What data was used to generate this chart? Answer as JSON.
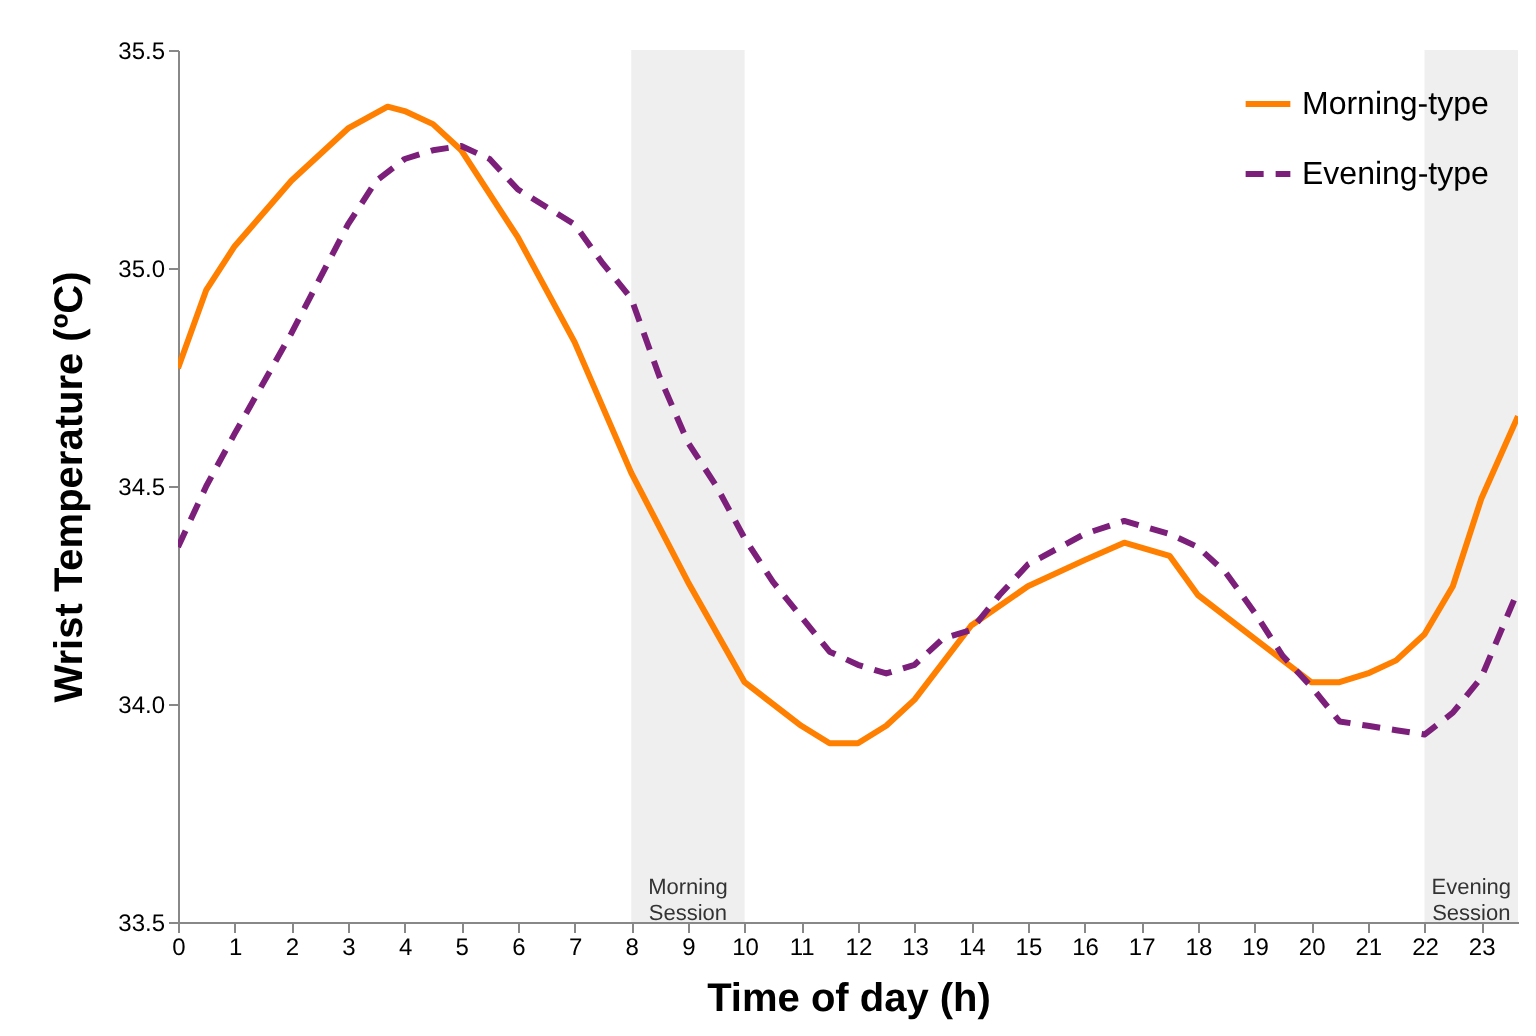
{
  "chart_data": {
    "type": "line",
    "xlabel": "Time of day (h)",
    "ylabel": "Wrist Temperature (ºC)",
    "xlim": [
      0,
      23.65
    ],
    "ylim": [
      33.5,
      35.5
    ],
    "xticks": [
      0,
      1,
      2,
      3,
      4,
      5,
      6,
      7,
      8,
      9,
      10,
      11,
      12,
      13,
      14,
      15,
      16,
      17,
      18,
      19,
      20,
      21,
      22,
      23
    ],
    "yticks": [
      33.5,
      {
        "value": 34,
        "label": "34.0"
      },
      34.5,
      {
        "value": 35,
        "label": "35.0"
      },
      35.5
    ],
    "grid": false,
    "legend": "top right",
    "marker": "none",
    "bands": [
      {
        "axis": "x",
        "from": 8,
        "to": 10,
        "label": "Morning Session",
        "color": "#efefef"
      },
      {
        "axis": "x",
        "from": 22,
        "to": 23.65,
        "label": "Evening Session",
        "color": "#efefef"
      }
    ],
    "series": [
      {
        "name": "Morning-type",
        "color": "#ff7f00",
        "line_style": "solid",
        "x": [
          0,
          0.5,
          1,
          2,
          3,
          3.7,
          4,
          4.5,
          5,
          6,
          7,
          8,
          9,
          10,
          11,
          11.5,
          12,
          12.5,
          13,
          14,
          15,
          16,
          16.7,
          17.5,
          18,
          19,
          20,
          20.5,
          21,
          21.5,
          22,
          22.5,
          23,
          23.65
        ],
        "values": [
          34.77,
          34.95,
          35.05,
          35.2,
          35.32,
          35.37,
          35.36,
          35.33,
          35.27,
          35.07,
          34.83,
          34.53,
          34.28,
          34.05,
          33.95,
          33.91,
          33.91,
          33.95,
          34.01,
          34.18,
          34.27,
          34.33,
          34.37,
          34.34,
          34.25,
          34.15,
          34.05,
          34.05,
          34.07,
          34.1,
          34.16,
          34.27,
          34.47,
          34.66
        ]
      },
      {
        "name": "Evening-type",
        "color": "#7b1f7b",
        "line_style": "dashed",
        "x": [
          0,
          0.5,
          1,
          2,
          3,
          3.5,
          4,
          4.5,
          5,
          5.5,
          6,
          7,
          7.5,
          8,
          8.5,
          9,
          9.5,
          10,
          10.5,
          11,
          11.5,
          12,
          12.5,
          13,
          13.5,
          14,
          14.5,
          15,
          16,
          16.7,
          17.5,
          18,
          18.5,
          19,
          19.5,
          20,
          20.5,
          21,
          21.5,
          22,
          22.5,
          23,
          23.65
        ],
        "values": [
          34.36,
          34.5,
          34.62,
          34.85,
          35.1,
          35.2,
          35.25,
          35.27,
          35.28,
          35.25,
          35.18,
          35.1,
          35.01,
          34.93,
          34.75,
          34.6,
          34.5,
          34.38,
          34.28,
          34.2,
          34.12,
          34.09,
          34.07,
          34.09,
          34.15,
          34.17,
          34.25,
          34.32,
          34.39,
          34.42,
          34.39,
          34.36,
          34.3,
          34.21,
          34.11,
          34.04,
          33.96,
          33.95,
          33.94,
          33.93,
          33.98,
          34.06,
          34.26
        ]
      }
    ]
  }
}
